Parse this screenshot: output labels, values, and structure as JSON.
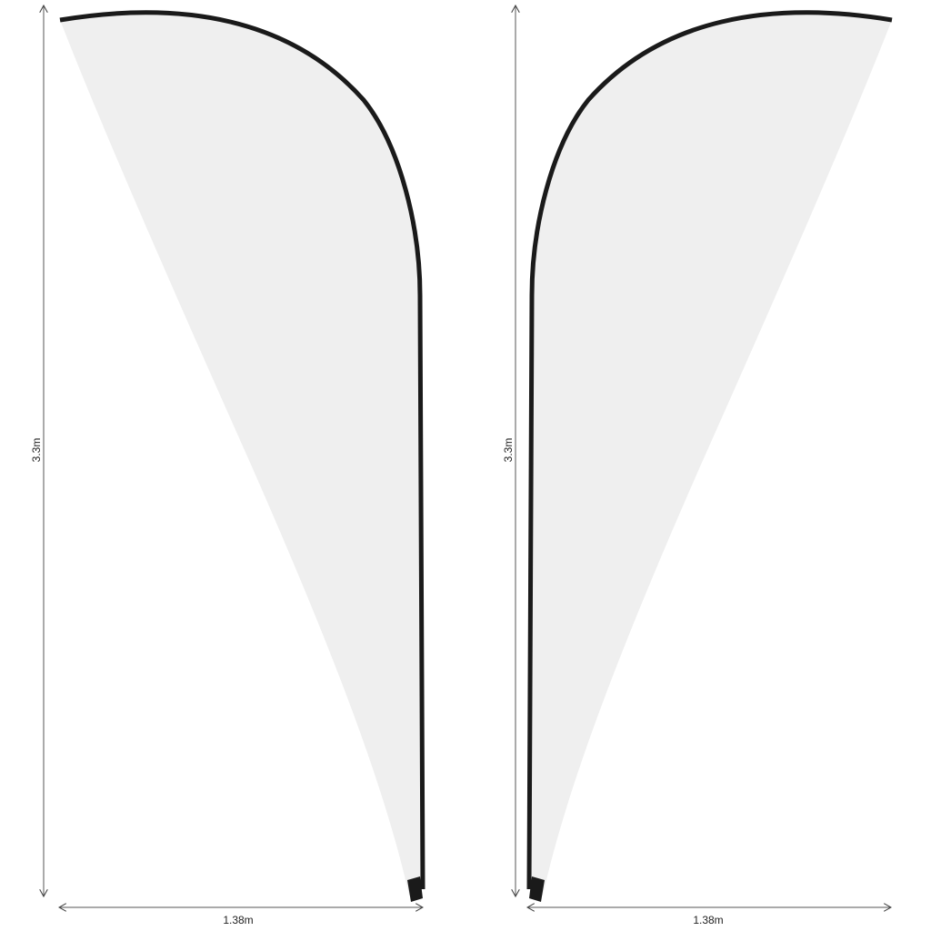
{
  "flags": [
    {
      "id": "left",
      "height_label": "3.3m",
      "width_label": "1.38m"
    },
    {
      "id": "right",
      "height_label": "3.3m",
      "width_label": "1.38m"
    }
  ],
  "colors": {
    "fabric": "#efefef",
    "pole": "#1a1a1a",
    "dimension_line": "#555555"
  }
}
